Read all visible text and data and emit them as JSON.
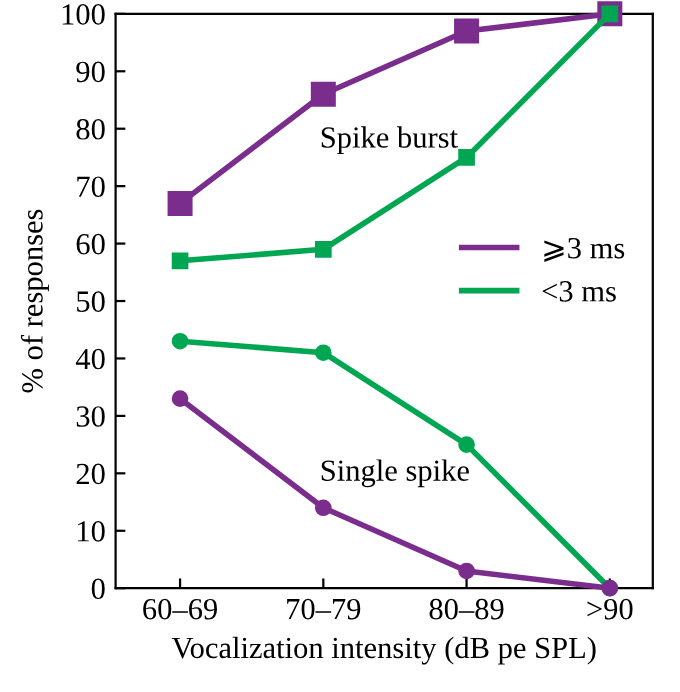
{
  "chart_data": {
    "type": "line",
    "xlabel": "Vocalization intensity (dB pe SPL)",
    "ylabel": "% of responses",
    "categories": [
      "60–69",
      "70–79",
      "80–89",
      ">90"
    ],
    "series": [
      {
        "name": "⩾3 ms",
        "color": "#7b2d8e",
        "marker": "square",
        "values": [
          67,
          86,
          97,
          100
        ]
      },
      {
        "name": "<3 ms",
        "color": "#00a651",
        "marker": "square",
        "values": [
          57,
          59,
          75,
          100
        ]
      },
      {
        "color": "#00a651",
        "marker": "circle",
        "values": [
          43,
          41,
          25,
          0
        ]
      },
      {
        "color": "#7b2d8e",
        "marker": "circle",
        "values": [
          33,
          14,
          3,
          0
        ]
      }
    ],
    "annotations": [
      "Spike burst",
      "Single spike"
    ],
    "ylim": [
      0,
      100
    ],
    "yticks": [
      0,
      10,
      20,
      30,
      40,
      50,
      60,
      70,
      80,
      90,
      100
    ],
    "grid": false,
    "legend": "right",
    "line_style": "solid"
  }
}
